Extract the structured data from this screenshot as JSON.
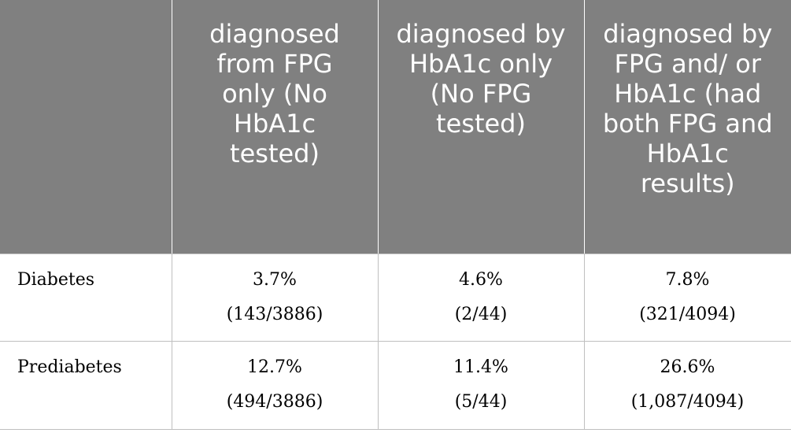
{
  "table": {
    "headers": [
      "",
      "diagnosed from FPG only (No HbA1c tested)",
      "diagnosed by HbA1c only (No FPG tested)",
      "diagnosed by FPG and/ or HbA1c (had both FPG and HbA1c results)"
    ],
    "rows": [
      {
        "label": "Diabetes",
        "cells": [
          {
            "pct": "3.7%",
            "ratio": "(143/3886)"
          },
          {
            "pct": "4.6%",
            "ratio": "(2/44)"
          },
          {
            "pct": "7.8%",
            "ratio": "(321/4094)"
          }
        ]
      },
      {
        "label": "Prediabetes",
        "cells": [
          {
            "pct": "12.7%",
            "ratio": "(494/3886)"
          },
          {
            "pct": "11.4%",
            "ratio": "(5/44)"
          },
          {
            "pct": "26.6%",
            "ratio": "(1,087/4094)"
          }
        ]
      }
    ]
  }
}
